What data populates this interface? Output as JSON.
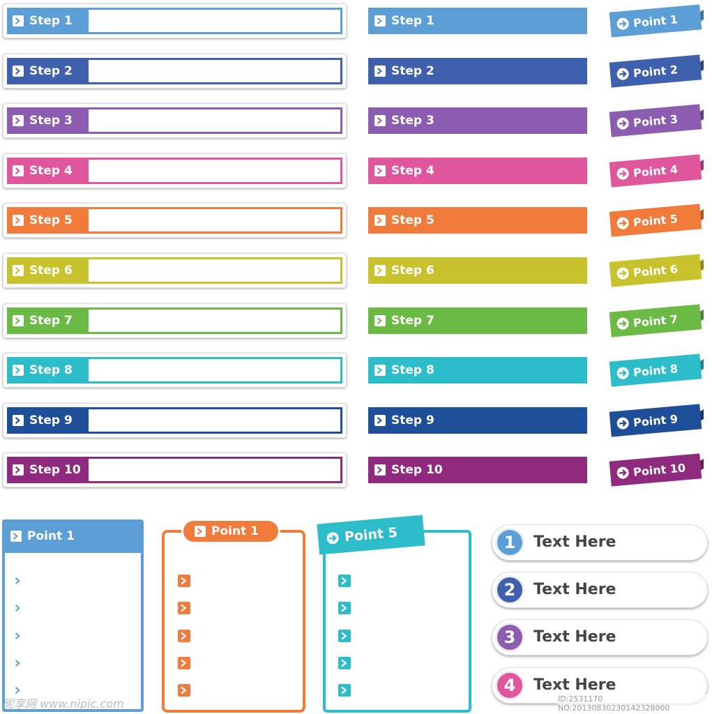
{
  "steps_boxed": [
    "Step 1",
    "Step 2",
    "Step 3",
    "Step 4",
    "Step 5",
    "Step 6",
    "Step 7",
    "Step 8",
    "Step 9",
    "Step 10"
  ],
  "steps_bars": [
    "Step 1",
    "Step 2",
    "Step 3",
    "Step 4",
    "Step 5",
    "Step 6",
    "Step 7",
    "Step 8",
    "Step 9",
    "Step 10"
  ],
  "point_tags": [
    "Point 1",
    "Point 2",
    "Point 3",
    "Point 4",
    "Point 5",
    "Point 6",
    "Point 7",
    "Point 8",
    "Point 9",
    "Point 10"
  ],
  "panels": [
    {
      "title": "Point 1"
    },
    {
      "title": "Point 1"
    },
    {
      "title": "Point 5"
    }
  ],
  "numbered_items": [
    {
      "number": "1",
      "text": "Text Here"
    },
    {
      "number": "2",
      "text": "Text Here"
    },
    {
      "number": "3",
      "text": "Text Here"
    },
    {
      "number": "4",
      "text": "Text Here"
    }
  ],
  "watermark": {
    "site": "昵享网 www.nipic.com",
    "id": "ID:2531170 NO:20130830230142328000"
  }
}
